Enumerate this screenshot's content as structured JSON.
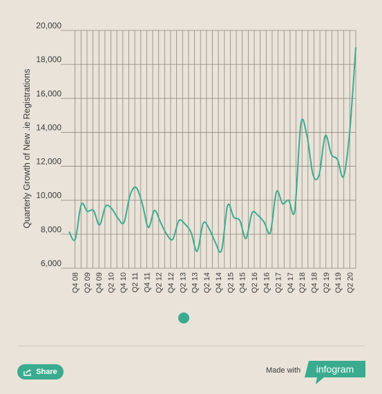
{
  "chart_data": {
    "type": "line",
    "title": "",
    "xlabel": "",
    "ylabel": "Quarterly Growth of New .ie Registrations",
    "ylim": [
      6000,
      20000
    ],
    "yticks": [
      6000,
      8000,
      10000,
      12000,
      14000,
      16000,
      18000,
      20000
    ],
    "ytick_labels": [
      "6,000",
      "8,000",
      "10,000",
      "12,000",
      "14,000",
      "16,000",
      "18,000",
      "20,000"
    ],
    "grid": true,
    "legend": "none",
    "series_color": "#3aab8f",
    "x_tick_labels": [
      "Q4 08",
      "Q2 09",
      "Q4 09",
      "Q2 10",
      "Q4 10",
      "Q2 11",
      "Q4 11",
      "Q2 12",
      "Q4 12",
      "Q2 13",
      "Q4 13",
      "Q2 14",
      "Q4 14",
      "Q2 15",
      "Q4 15",
      "Q2 16",
      "Q4 16",
      "Q2 17",
      "Q4 17",
      "Q2 18",
      "Q4 18",
      "Q2 19",
      "Q4 19",
      "Q2 20"
    ],
    "series": [
      {
        "values": [
          8150,
          7700,
          9750,
          9350,
          9400,
          8550,
          9650,
          9500,
          8950,
          8700,
          10300,
          10750,
          9800,
          8400,
          9400,
          8700,
          8000,
          7700,
          8800,
          8600,
          8100,
          7000,
          8650,
          8300,
          7500,
          7050,
          9700,
          9000,
          8800,
          7750,
          9250,
          9100,
          8700,
          8100,
          10500,
          9800,
          10000,
          9400,
          14500,
          13800,
          11500,
          11500,
          13800,
          12700,
          12400,
          11400,
          14000,
          19000
        ]
      }
    ]
  },
  "controls": {
    "share_label": "Share",
    "made_with": "Made with",
    "brand": "infogram"
  },
  "colors": {
    "accent": "#3aab8f",
    "background": "#e9e3d9",
    "grid": "#8c867d"
  }
}
